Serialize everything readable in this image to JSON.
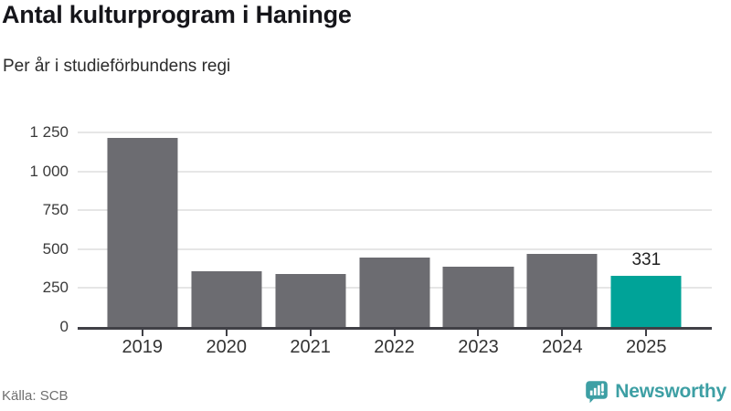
{
  "title": "Antal kulturprogram i Haninge",
  "subtitle": "Per år i studieförbundens regi",
  "source": "Källa: SCB",
  "branding": {
    "logo_text": "Newsworthy",
    "logo_icon": "newsworthy-speech-bubble-bar-chart-icon",
    "logo_color": "#3d9fa4"
  },
  "colors": {
    "bar": "#6c6c71",
    "highlight": "#00a398",
    "axis": "#404046",
    "gridline": "#e6e6e6",
    "title_text": "#15151a",
    "tick_text": "#3a3a3a",
    "source_text": "#6f6f6f"
  },
  "chart_data": {
    "type": "bar",
    "title": "Antal kulturprogram i Haninge",
    "subtitle": "Per år i studieförbundens regi",
    "xlabel": "",
    "ylabel": "",
    "categories": [
      "2019",
      "2020",
      "2021",
      "2022",
      "2023",
      "2024",
      "2025"
    ],
    "values": [
      1213,
      356,
      340,
      447,
      388,
      467,
      331
    ],
    "bar_labels": [
      "",
      "",
      "",
      "",
      "",
      "",
      "331"
    ],
    "highlight_index": 6,
    "ylim": [
      0,
      1250
    ],
    "yticks": [
      {
        "value": 1250,
        "label": "1 250"
      },
      {
        "value": 1000,
        "label": "1 000"
      },
      {
        "value": 750,
        "label": "750"
      },
      {
        "value": 500,
        "label": "500"
      },
      {
        "value": 250,
        "label": "250"
      },
      {
        "value": 0,
        "label": "0"
      }
    ],
    "grid": true,
    "legend": false
  }
}
